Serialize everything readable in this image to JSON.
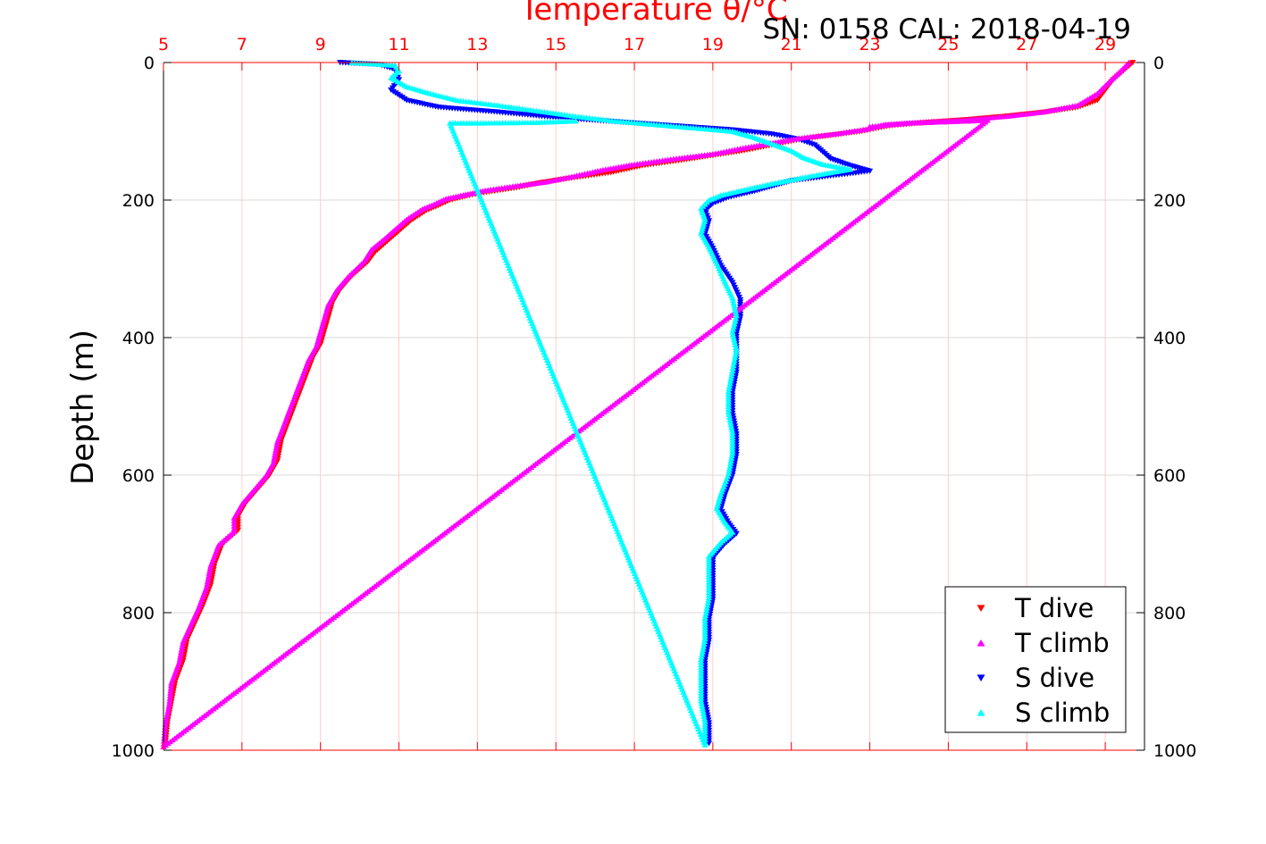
{
  "chart_data": {
    "type": "scatter",
    "title": "Temperature θ/°C",
    "subtitle": "SN: 0158  CAL: 2018-04-19",
    "xlabel": "Temperature θ/°C",
    "ylabel": "Depth (m)",
    "xlim": [
      5,
      30
    ],
    "ylim": [
      0,
      1000
    ],
    "y_inverted": true,
    "x_ticks": [
      5,
      7,
      9,
      11,
      13,
      15,
      17,
      19,
      21,
      23,
      25,
      27,
      29
    ],
    "y_ticks": [
      0,
      200,
      400,
      600,
      800,
      1000
    ],
    "grid": true,
    "legend_position": "bottom-right",
    "series": [
      {
        "name": "T dive",
        "color": "#ff0000",
        "marker": "triangle-down",
        "points": [
          [
            29.7,
            0
          ],
          [
            29.5,
            10
          ],
          [
            29.2,
            25
          ],
          [
            29.0,
            40
          ],
          [
            28.8,
            55
          ],
          [
            28.3,
            65
          ],
          [
            27.5,
            72
          ],
          [
            26.5,
            78
          ],
          [
            25.5,
            83
          ],
          [
            24.5,
            87
          ],
          [
            23.5,
            92
          ],
          [
            22.8,
            100
          ],
          [
            22.0,
            106
          ],
          [
            21.2,
            112
          ],
          [
            20.5,
            120
          ],
          [
            19.8,
            128
          ],
          [
            19.0,
            135
          ],
          [
            18.2,
            142
          ],
          [
            17.2,
            150
          ],
          [
            16.4,
            160
          ],
          [
            15.4,
            168
          ],
          [
            14.6,
            175
          ],
          [
            14.0,
            182
          ],
          [
            13.3,
            188
          ],
          [
            12.8,
            193
          ],
          [
            12.3,
            200
          ],
          [
            12.0,
            208
          ],
          [
            11.7,
            215
          ],
          [
            11.3,
            230
          ],
          [
            11.0,
            245
          ],
          [
            10.7,
            260
          ],
          [
            10.4,
            275
          ],
          [
            10.2,
            290
          ],
          [
            9.8,
            310
          ],
          [
            9.5,
            330
          ],
          [
            9.3,
            350
          ],
          [
            9.2,
            370
          ],
          [
            9.1,
            390
          ],
          [
            9.0,
            410
          ],
          [
            8.8,
            430
          ],
          [
            8.6,
            460
          ],
          [
            8.4,
            490
          ],
          [
            8.2,
            520
          ],
          [
            8.0,
            550
          ],
          [
            7.9,
            580
          ],
          [
            7.7,
            600
          ],
          [
            7.4,
            620
          ],
          [
            7.1,
            640
          ],
          [
            6.9,
            660
          ],
          [
            6.9,
            680
          ],
          [
            6.5,
            700
          ],
          [
            6.3,
            730
          ],
          [
            6.2,
            760
          ],
          [
            6.0,
            790
          ],
          [
            5.8,
            815
          ],
          [
            5.6,
            840
          ],
          [
            5.5,
            870
          ],
          [
            5.3,
            900
          ],
          [
            5.2,
            930
          ],
          [
            5.1,
            960
          ],
          [
            5.05,
            990
          ]
        ]
      },
      {
        "name": "T climb",
        "color": "#ff00ff",
        "marker": "triangle-up",
        "points": [
          [
            29.6,
            0
          ],
          [
            29.4,
            12
          ],
          [
            29.1,
            28
          ],
          [
            28.8,
            45
          ],
          [
            28.3,
            62
          ],
          [
            27.4,
            72
          ],
          [
            26.5,
            78
          ],
          [
            25.5,
            83
          ],
          [
            24.5,
            86
          ],
          [
            23.4,
            90
          ],
          [
            22.9,
            97
          ],
          [
            22.2,
            103
          ],
          [
            21.2,
            110
          ],
          [
            20.4,
            118
          ],
          [
            19.7,
            125
          ],
          [
            19.0,
            133
          ],
          [
            18.0,
            140
          ],
          [
            17.0,
            148
          ],
          [
            16.2,
            156
          ],
          [
            15.4,
            166
          ],
          [
            14.7,
            174
          ],
          [
            13.9,
            180
          ],
          [
            13.2,
            186
          ],
          [
            12.7,
            192
          ],
          [
            12.2,
            198
          ],
          [
            11.9,
            206
          ],
          [
            11.6,
            213
          ],
          [
            11.2,
            228
          ],
          [
            10.9,
            243
          ],
          [
            10.6,
            258
          ],
          [
            10.3,
            272
          ],
          [
            10.1,
            290
          ],
          [
            9.7,
            312
          ],
          [
            9.4,
            332
          ],
          [
            9.2,
            352
          ],
          [
            9.1,
            372
          ],
          [
            9.0,
            392
          ],
          [
            8.9,
            412
          ],
          [
            8.7,
            432
          ],
          [
            8.5,
            462
          ],
          [
            8.3,
            492
          ],
          [
            8.1,
            522
          ],
          [
            7.9,
            552
          ],
          [
            7.8,
            582
          ],
          [
            7.6,
            602
          ],
          [
            7.3,
            622
          ],
          [
            7.0,
            642
          ],
          [
            6.8,
            662
          ],
          [
            6.8,
            682
          ],
          [
            6.4,
            702
          ],
          [
            6.2,
            732
          ],
          [
            6.1,
            762
          ],
          [
            5.9,
            792
          ],
          [
            5.7,
            817
          ],
          [
            5.5,
            842
          ],
          [
            5.4,
            872
          ],
          [
            5.2,
            902
          ],
          [
            5.15,
            932
          ],
          [
            5.05,
            962
          ],
          [
            5.0,
            995
          ],
          [
            26.0,
            84
          ],
          [
            24.0,
            88
          ],
          [
            23.0,
            93
          ]
        ]
      },
      {
        "name": "S dive",
        "color": "#0000ff",
        "marker": "triangle-down",
        "points": [
          [
            9.5,
            0
          ],
          [
            10.5,
            3
          ],
          [
            10.9,
            10
          ],
          [
            11.0,
            25
          ],
          [
            10.8,
            40
          ],
          [
            11.2,
            55
          ],
          [
            12.0,
            65
          ],
          [
            13.5,
            72
          ],
          [
            15.0,
            80
          ],
          [
            16.5,
            86
          ],
          [
            18.0,
            92
          ],
          [
            19.5,
            98
          ],
          [
            20.5,
            104
          ],
          [
            21.2,
            112
          ],
          [
            21.6,
            120
          ],
          [
            21.8,
            130
          ],
          [
            22.0,
            140
          ],
          [
            22.5,
            150
          ],
          [
            23.0,
            158
          ],
          [
            22.0,
            165
          ],
          [
            21.0,
            172
          ],
          [
            20.5,
            180
          ],
          [
            20.0,
            188
          ],
          [
            19.4,
            196
          ],
          [
            19.0,
            205
          ],
          [
            18.8,
            215
          ],
          [
            18.9,
            230
          ],
          [
            18.8,
            250
          ],
          [
            19.0,
            270
          ],
          [
            19.2,
            295
          ],
          [
            19.5,
            320
          ],
          [
            19.7,
            345
          ],
          [
            19.7,
            370
          ],
          [
            19.6,
            395
          ],
          [
            19.6,
            420
          ],
          [
            19.6,
            450
          ],
          [
            19.5,
            480
          ],
          [
            19.5,
            510
          ],
          [
            19.6,
            540
          ],
          [
            19.6,
            570
          ],
          [
            19.5,
            600
          ],
          [
            19.3,
            630
          ],
          [
            19.2,
            650
          ],
          [
            19.4,
            670
          ],
          [
            19.6,
            685
          ],
          [
            19.3,
            700
          ],
          [
            19.0,
            720
          ],
          [
            19.0,
            750
          ],
          [
            19.0,
            780
          ],
          [
            18.9,
            810
          ],
          [
            18.9,
            840
          ],
          [
            18.8,
            870
          ],
          [
            18.8,
            900
          ],
          [
            18.8,
            930
          ],
          [
            18.9,
            960
          ],
          [
            18.9,
            990
          ]
        ]
      },
      {
        "name": "S climb",
        "color": "#00ffff",
        "marker": "triangle-up",
        "points": [
          [
            9.8,
            0
          ],
          [
            10.9,
            4
          ],
          [
            11.0,
            12
          ],
          [
            10.8,
            22
          ],
          [
            11.2,
            35
          ],
          [
            11.8,
            45
          ],
          [
            12.5,
            55
          ],
          [
            13.5,
            62
          ],
          [
            14.5,
            70
          ],
          [
            15.5,
            78
          ],
          [
            16.5,
            85
          ],
          [
            17.5,
            90
          ],
          [
            18.5,
            95
          ],
          [
            19.5,
            100
          ],
          [
            20.0,
            108
          ],
          [
            20.5,
            118
          ],
          [
            21.0,
            128
          ],
          [
            21.3,
            138
          ],
          [
            21.8,
            148
          ],
          [
            22.5,
            155
          ],
          [
            21.5,
            165
          ],
          [
            20.6,
            175
          ],
          [
            19.8,
            185
          ],
          [
            19.2,
            193
          ],
          [
            18.9,
            200
          ],
          [
            18.7,
            212
          ],
          [
            18.8,
            228
          ],
          [
            18.7,
            248
          ],
          [
            18.9,
            268
          ],
          [
            19.1,
            292
          ],
          [
            19.3,
            318
          ],
          [
            19.5,
            342
          ],
          [
            19.6,
            368
          ],
          [
            19.5,
            392
          ],
          [
            19.6,
            418
          ],
          [
            19.5,
            448
          ],
          [
            19.4,
            478
          ],
          [
            19.4,
            508
          ],
          [
            19.5,
            538
          ],
          [
            19.5,
            568
          ],
          [
            19.4,
            598
          ],
          [
            19.2,
            628
          ],
          [
            19.1,
            648
          ],
          [
            19.3,
            668
          ],
          [
            19.5,
            683
          ],
          [
            19.2,
            698
          ],
          [
            18.9,
            718
          ],
          [
            18.9,
            748
          ],
          [
            18.9,
            778
          ],
          [
            18.8,
            808
          ],
          [
            18.8,
            838
          ],
          [
            18.7,
            868
          ],
          [
            18.7,
            898
          ],
          [
            18.7,
            928
          ],
          [
            18.8,
            958
          ],
          [
            18.8,
            992
          ],
          [
            12.3,
            88
          ],
          [
            13.0,
            88
          ],
          [
            14.5,
            87
          ],
          [
            15.5,
            85
          ]
        ]
      }
    ]
  },
  "colors": {
    "axis_top": "#ff0000",
    "axis_other": "#000000",
    "grid_vertical": "#ffcccc",
    "grid_horizontal": "#d9d9d9"
  }
}
